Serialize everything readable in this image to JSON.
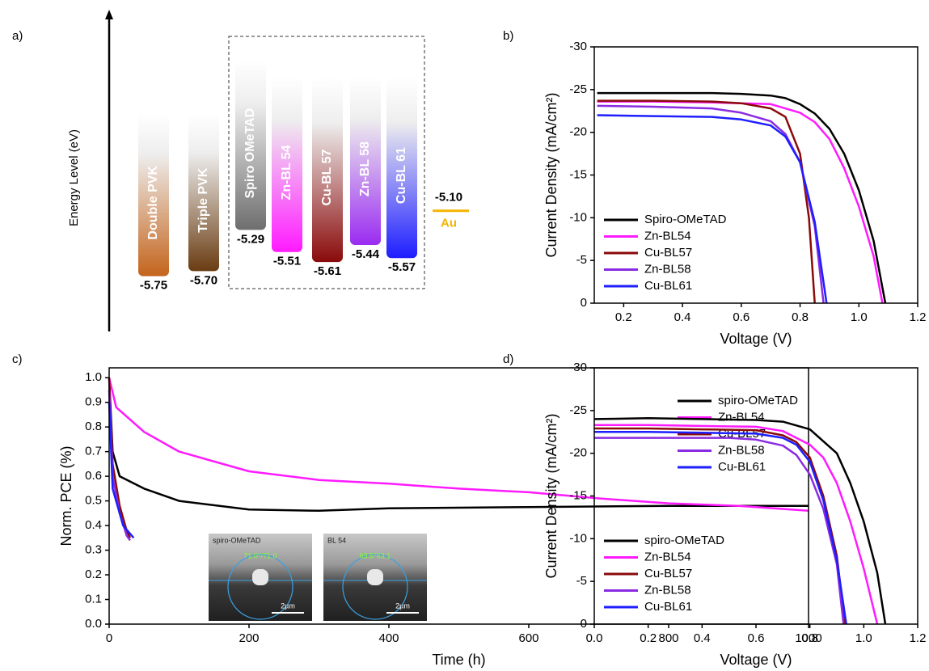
{
  "chart_data": [
    {
      "type": "energy-level",
      "panel_label": "a)",
      "ylabel": "Energy Level (eV)",
      "ylim": [
        -6.3,
        -3.1
      ],
      "categories": [
        "Double PVK",
        "Triple PVK",
        "Spiro OMeTAD",
        "Zn-BL 54",
        "Cu-BL 57",
        "Zn-BL 58",
        "Cu-BL 61"
      ],
      "values": [
        -5.75,
        -5.7,
        -5.29,
        -5.51,
        -5.61,
        -5.44,
        -5.57
      ],
      "value_labels": [
        "-5.75",
        "-5.70",
        "-5.29",
        "-5.51",
        "-5.61",
        "-5.44",
        "-5.57"
      ],
      "colors": [
        "#c4641c",
        "#6a3c12",
        "#6e6e6e",
        "#ff1aff",
        "#8a0a0a",
        "#9a2cf0",
        "#1e1eff"
      ],
      "reference": {
        "name": "Au",
        "value": -5.1,
        "value_label": "-5.10",
        "color": "#f5b400"
      }
    },
    {
      "type": "line",
      "panel_label": "b)",
      "xlabel": "Voltage (V)",
      "ylabel": "Current Density (mA/cm²)",
      "xlim": [
        0.1,
        1.2
      ],
      "xticks": [
        0.2,
        0.4,
        0.6,
        0.8,
        {
          "value": 1,
          "label": "1.0"
        },
        1.2
      ],
      "ylim": [
        0,
        -30
      ],
      "yticks": [
        0,
        -5,
        -10,
        -15,
        -20,
        -25,
        -30
      ],
      "legend": "lower left",
      "series": [
        {
          "name": "Spiro-OMeTAD",
          "color": "#000000",
          "x": [
            0.11,
            0.2,
            0.3,
            0.4,
            0.5,
            0.6,
            0.7,
            0.75,
            0.8,
            0.85,
            0.9,
            0.95,
            1.0,
            1.05,
            1.09
          ],
          "values": [
            -24.6,
            -24.6,
            -24.6,
            -24.6,
            -24.6,
            -24.5,
            -24.3,
            -24.0,
            -23.3,
            -22.2,
            -20.4,
            -17.5,
            -13.2,
            -7.3,
            0
          ]
        },
        {
          "name": "Zn-BL54",
          "color": "#ff1aff",
          "x": [
            0.11,
            0.3,
            0.5,
            0.7,
            0.8,
            0.85,
            0.9,
            0.95,
            1.0,
            1.05,
            1.08
          ],
          "values": [
            -23.6,
            -23.6,
            -23.5,
            -23.3,
            -22.3,
            -21.2,
            -19.2,
            -15.8,
            -11.3,
            -5.5,
            0
          ]
        },
        {
          "name": "Cu-BL57",
          "color": "#8a0a0a",
          "x": [
            0.11,
            0.3,
            0.5,
            0.6,
            0.7,
            0.75,
            0.8,
            0.83,
            0.85
          ],
          "values": [
            -23.7,
            -23.7,
            -23.6,
            -23.4,
            -22.8,
            -21.8,
            -17.5,
            -10,
            0
          ]
        },
        {
          "name": "Zn-BL58",
          "color": "#8a2be2",
          "x": [
            0.11,
            0.3,
            0.5,
            0.6,
            0.7,
            0.75,
            0.8,
            0.85,
            0.88
          ],
          "values": [
            -23.1,
            -23.0,
            -22.8,
            -22.3,
            -21.3,
            -19.8,
            -16.5,
            -9,
            0
          ]
        },
        {
          "name": "Cu-BL61",
          "color": "#1e1eff",
          "x": [
            0.11,
            0.3,
            0.5,
            0.6,
            0.7,
            0.75,
            0.8,
            0.85,
            0.89
          ],
          "values": [
            -22.0,
            -21.9,
            -21.8,
            -21.5,
            -20.8,
            -19.5,
            -16.5,
            -9.5,
            0
          ]
        }
      ]
    },
    {
      "type": "line",
      "panel_label": "c)",
      "xlabel": "Time (h)",
      "ylabel": "Norm. PCE (%)",
      "xlim": [
        0,
        1000
      ],
      "xticks": [
        0,
        200,
        400,
        600,
        800,
        1000
      ],
      "ylim": [
        0,
        1.04
      ],
      "yticks": [
        {
          "value": 0,
          "label": "0.0"
        },
        0.1,
        0.2,
        0.3,
        0.4,
        0.5,
        0.6,
        0.7,
        0.8,
        0.9,
        {
          "value": 1,
          "label": "1.0"
        }
      ],
      "legend": "upper right",
      "series": [
        {
          "name": "spiro-OMeTAD",
          "color": "#000000",
          "x": [
            0,
            5,
            15,
            50,
            100,
            200,
            300,
            400,
            600,
            800,
            1000
          ],
          "values": [
            1.0,
            0.7,
            0.6,
            0.55,
            0.5,
            0.465,
            0.46,
            0.47,
            0.475,
            0.48,
            0.48
          ]
        },
        {
          "name": "Zn-BL54",
          "color": "#ff1aff",
          "x": [
            0,
            10,
            50,
            100,
            200,
            300,
            400,
            500,
            600,
            700,
            800,
            900,
            1000
          ],
          "values": [
            1.0,
            0.88,
            0.78,
            0.7,
            0.62,
            0.585,
            0.57,
            0.55,
            0.535,
            0.51,
            0.49,
            0.48,
            0.46
          ]
        },
        {
          "name": "Cu-BL57",
          "color": "#8a0a0a",
          "x": [
            0,
            5,
            15,
            25,
            30
          ],
          "values": [
            1.0,
            0.65,
            0.48,
            0.38,
            0.35
          ]
        },
        {
          "name": "Zn-BL58",
          "color": "#8a2be2",
          "x": [
            0,
            5,
            15,
            25,
            30
          ],
          "values": [
            0.95,
            0.6,
            0.45,
            0.36,
            0.34
          ]
        },
        {
          "name": "Cu-BL61",
          "color": "#1e1eff",
          "x": [
            0,
            5,
            20,
            35
          ],
          "values": [
            0.9,
            0.55,
            0.4,
            0.35
          ]
        }
      ],
      "inset": [
        {
          "label": "spiro-OMeTAD",
          "angle": "71.0°/71.0",
          "scale": "2µm"
        },
        {
          "label": "BL 54",
          "angle": "63.5°63.1",
          "scale": "2µm"
        }
      ]
    },
    {
      "type": "line",
      "panel_label": "d)",
      "xlabel": "Voltage (V)",
      "ylabel": "Current Density (mA/cm²)",
      "xlim": [
        0,
        1.2
      ],
      "xticks": [
        {
          "value": 0,
          "label": "0.0"
        },
        0.2,
        0.4,
        0.6,
        0.8,
        {
          "value": 1,
          "label": "1.0"
        },
        1.2
      ],
      "ylim": [
        0,
        -30
      ],
      "yticks": [
        0,
        -5,
        -10,
        -15,
        -20,
        -25,
        -30
      ],
      "legend": "lower left",
      "series": [
        {
          "name": "spiro-OMeTAD",
          "color": "#000000",
          "x": [
            0,
            0.2,
            0.4,
            0.6,
            0.7,
            0.8,
            0.9,
            0.95,
            1.0,
            1.05,
            1.08
          ],
          "values": [
            -24.0,
            -24.1,
            -24.0,
            -23.9,
            -23.7,
            -22.8,
            -20,
            -16.5,
            -12,
            -6,
            0
          ]
        },
        {
          "name": "Zn-BL54",
          "color": "#ff1aff",
          "x": [
            0,
            0.2,
            0.4,
            0.6,
            0.7,
            0.8,
            0.85,
            0.9,
            0.95,
            1.0,
            1.05
          ],
          "values": [
            -23.3,
            -23.3,
            -23.2,
            -23.1,
            -22.6,
            -21,
            -19.5,
            -16.5,
            -12,
            -6.5,
            0
          ]
        },
        {
          "name": "Cu-BL57",
          "color": "#8a0a0a",
          "x": [
            0,
            0.2,
            0.4,
            0.6,
            0.7,
            0.75,
            0.8,
            0.85,
            0.9,
            0.93
          ],
          "values": [
            -22.9,
            -22.9,
            -22.8,
            -22.7,
            -22.1,
            -21.3,
            -19.5,
            -15,
            -8,
            0
          ]
        },
        {
          "name": "Zn-BL58",
          "color": "#8a2be2",
          "x": [
            0,
            0.2,
            0.5,
            0.6,
            0.7,
            0.75,
            0.8,
            0.85,
            0.9,
            0.925
          ],
          "values": [
            -21.8,
            -21.8,
            -21.8,
            -21.6,
            -20.9,
            -19.8,
            -17.5,
            -13.5,
            -7,
            0
          ]
        },
        {
          "name": "Cu-BL61",
          "color": "#1e1eff",
          "x": [
            0,
            0.2,
            0.4,
            0.6,
            0.7,
            0.75,
            0.8,
            0.85,
            0.9,
            0.935
          ],
          "values": [
            -22.5,
            -22.5,
            -22.4,
            -22.3,
            -21.8,
            -21,
            -19,
            -14.5,
            -7.5,
            0
          ]
        }
      ]
    }
  ]
}
